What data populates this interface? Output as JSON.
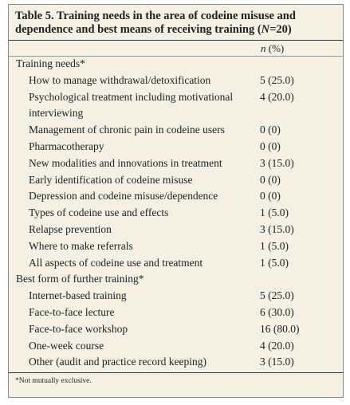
{
  "table": {
    "title": [
      "Table 5. Training needs in the area of codeine misuse and dependence and best means of receiving training (",
      "N",
      "=20)"
    ],
    "header": [
      "n",
      " (%)"
    ],
    "sections": [
      {
        "label": "Training needs*",
        "rows": [
          [
            "How to manage withdrawal/detoxification",
            "5 (25.0)"
          ],
          [
            "Psychological treatment including motivational interviewing",
            "4 (20.0)"
          ],
          [
            "Management of chronic pain in codeine users",
            "0 (0)"
          ],
          [
            "Pharmacotherapy",
            "0 (0)"
          ],
          [
            "New modalities and innovations in treatment",
            "3 (15.0)"
          ],
          [
            "Early identification of codeine misuse",
            "0 (0)"
          ],
          [
            "Depression and codeine misuse/dependence",
            "0 (0)"
          ],
          [
            "Types of codeine use and effects",
            "1 (5.0)"
          ],
          [
            "Relapse prevention",
            "3 (15.0)"
          ],
          [
            "Where to make referrals",
            "1 (5.0)"
          ],
          [
            "All aspects of codeine use and treatment",
            "1 (5.0)"
          ]
        ]
      },
      {
        "label": "Best form of further training*",
        "rows": [
          [
            "Internet-based training",
            "5 (25.0)"
          ],
          [
            "Face-to-face lecture",
            "6 (30.0)"
          ],
          [
            "Face-to-face workshop",
            "16 (80.0)"
          ],
          [
            "One-week course",
            "4 (20.0)"
          ],
          [
            "Other (audit and practice record keeping)",
            "3 (15.0)"
          ]
        ]
      }
    ],
    "footnote": "*Not mutually exclusive."
  }
}
